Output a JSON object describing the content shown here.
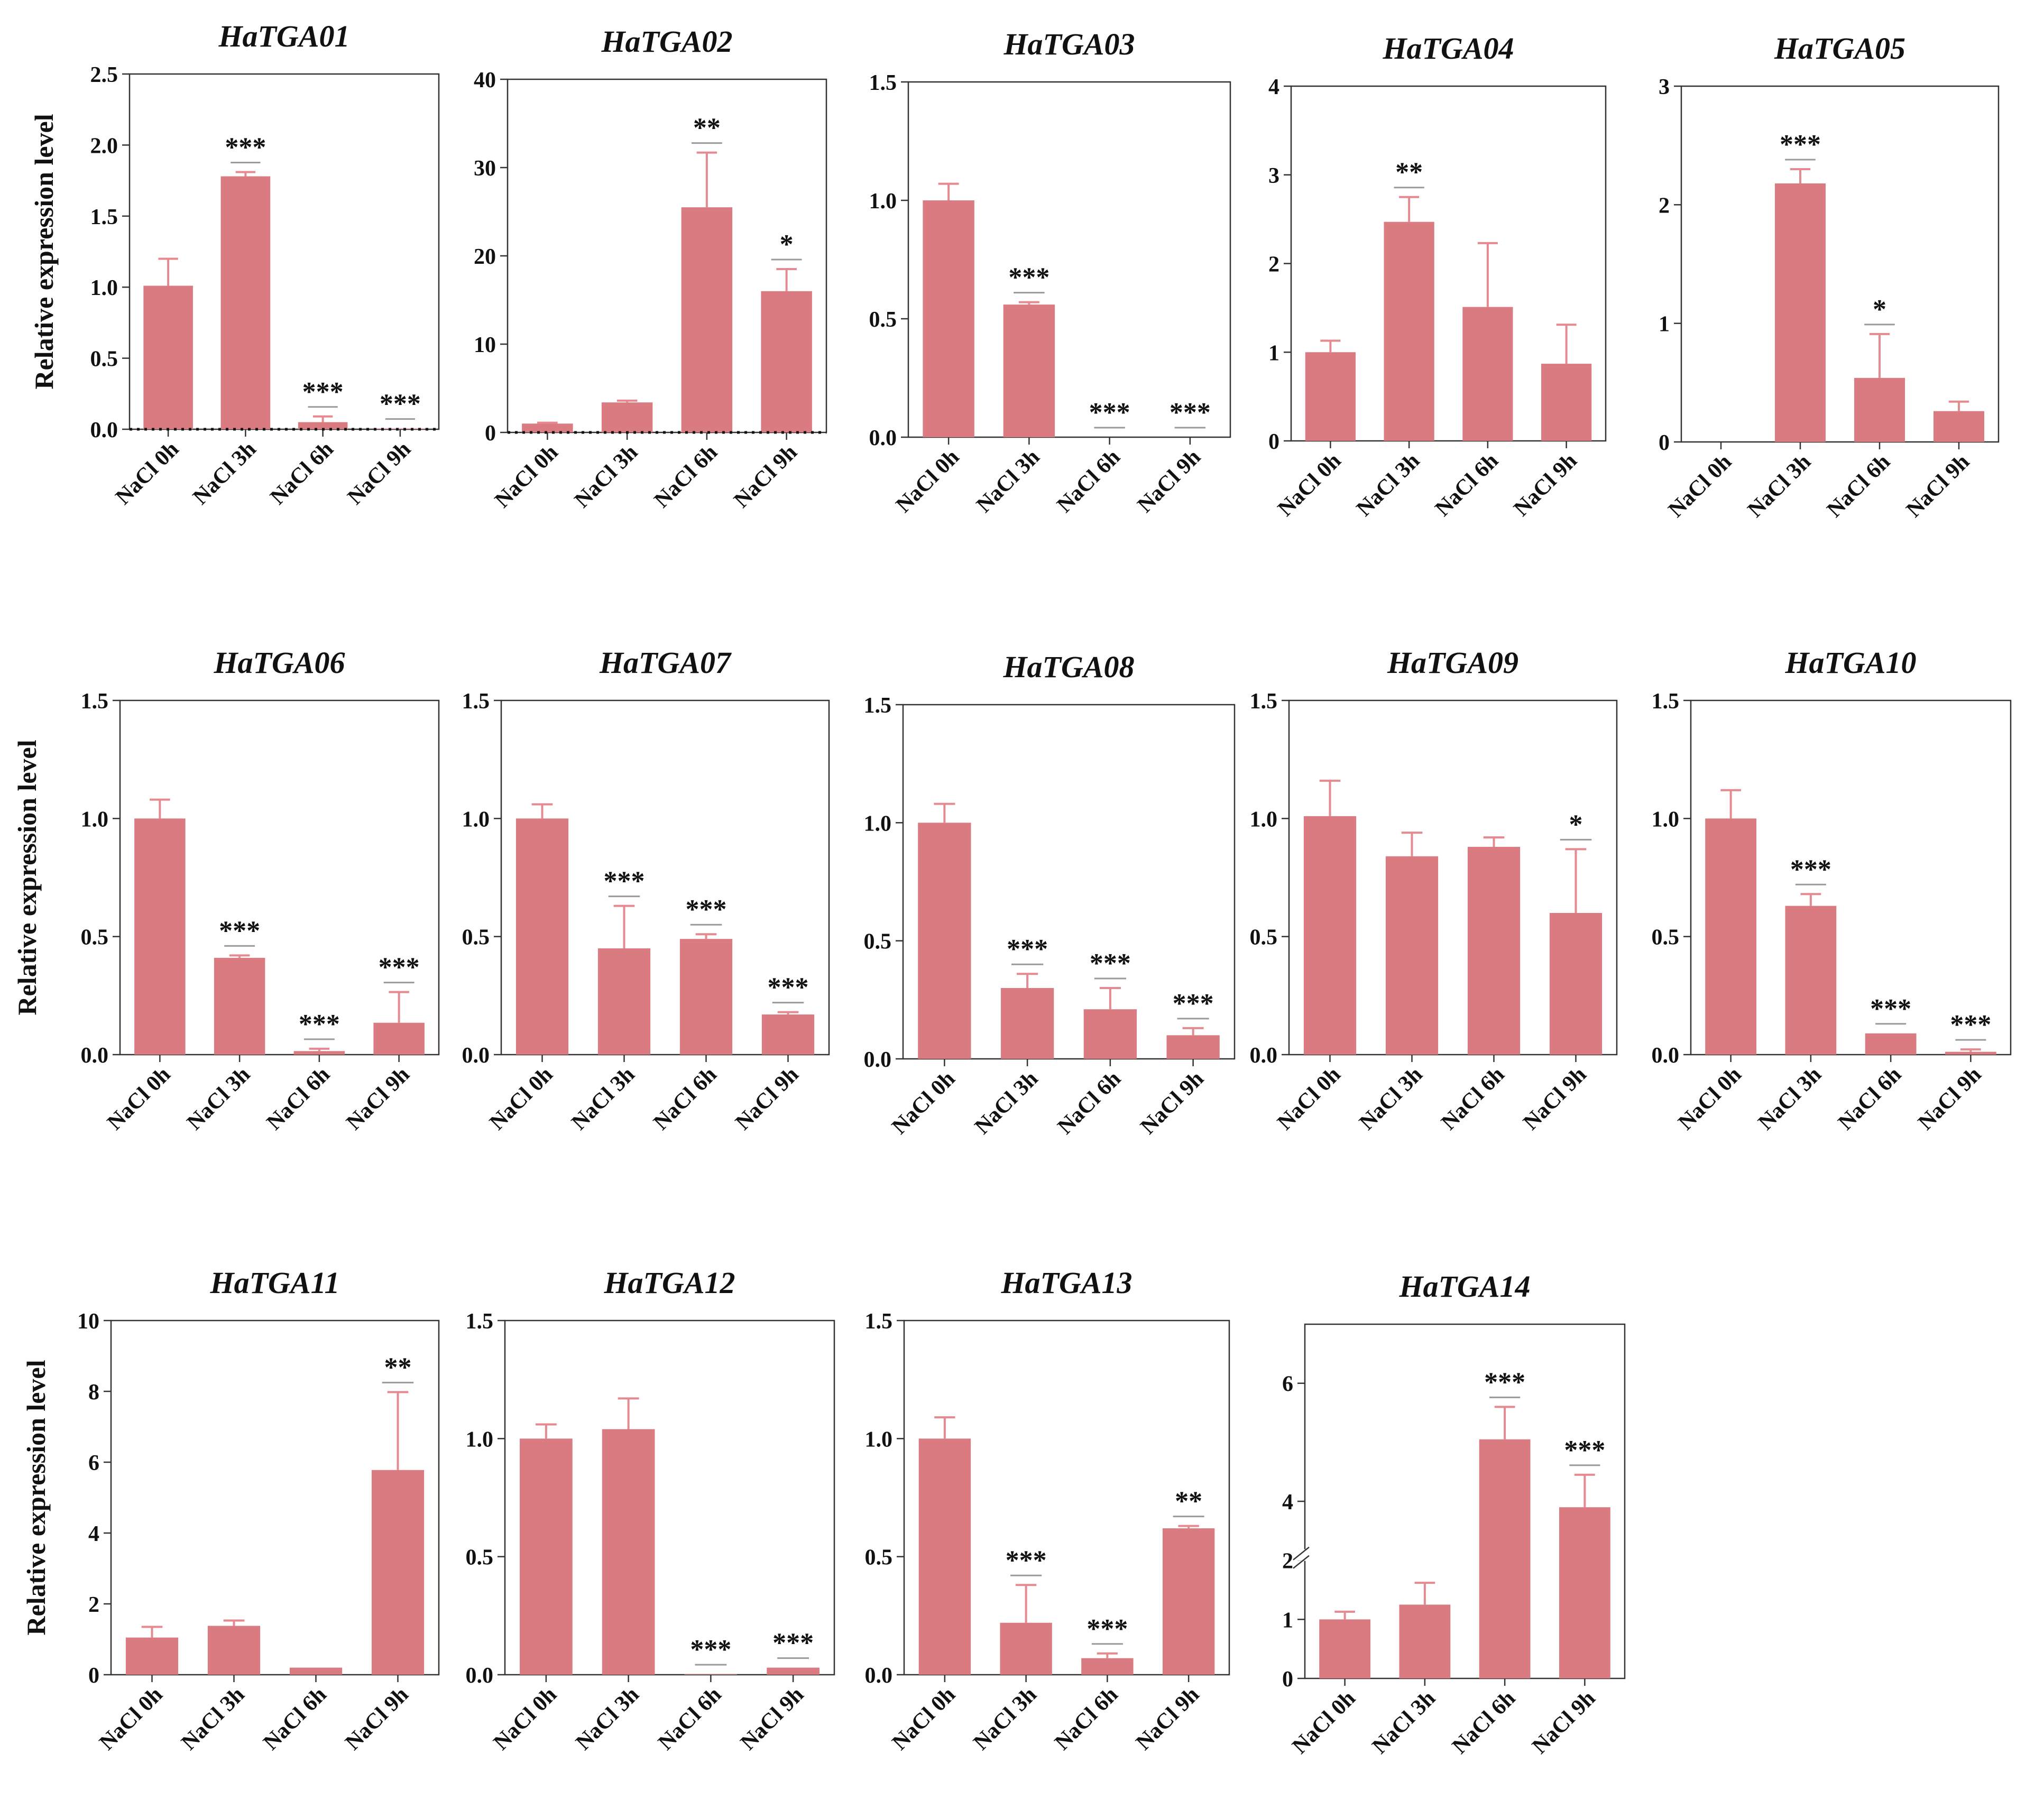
{
  "figure": {
    "ylabel": "Relative expression level",
    "categories": [
      "NaCl 0h",
      "NaCl 3h",
      "NaCl 6h",
      "NaCl 9h"
    ],
    "bar_color": "#d97b80",
    "error_color": "#e58a90",
    "sig_line_color": "#9a9a9a",
    "axis_color": "#333333"
  },
  "chart_data": [
    {
      "type": "bar",
      "title": "HaTGA01",
      "ylabel": "Relative expression level",
      "categories": [
        "NaCl 0h",
        "NaCl 3h",
        "NaCl 6h",
        "NaCl 9h"
      ],
      "ylim": [
        0,
        2.5
      ],
      "yticks": [
        "0.0",
        "0.5",
        "1.0",
        "1.5",
        "2.0",
        "2.5"
      ],
      "values": [
        1.01,
        1.78,
        0.05,
        0.005
      ],
      "errors": [
        0.19,
        0.03,
        0.04,
        0.0
      ],
      "sig": [
        "",
        "***",
        "***",
        "***"
      ],
      "zero_line": "dotted"
    },
    {
      "type": "bar",
      "title": "HaTGA02",
      "categories": [
        "NaCl 0h",
        "NaCl 3h",
        "NaCl 6h",
        "NaCl 9h"
      ],
      "ylim": [
        0,
        40
      ],
      "yticks": [
        "0",
        "10",
        "20",
        "30",
        "40"
      ],
      "values": [
        1.0,
        3.4,
        25.5,
        16.0
      ],
      "errors": [
        0.1,
        0.2,
        6.2,
        2.5
      ],
      "sig": [
        "",
        "",
        "**",
        "*"
      ],
      "zero_line": "dotted"
    },
    {
      "type": "bar",
      "title": "HaTGA03",
      "categories": [
        "NaCl 0h",
        "NaCl 3h",
        "NaCl 6h",
        "NaCl 9h"
      ],
      "ylim": [
        0,
        1.5
      ],
      "yticks": [
        "0.0",
        "0.5",
        "1.0",
        "1.5"
      ],
      "values": [
        1.0,
        0.56,
        0.0,
        0.0
      ],
      "errors": [
        0.07,
        0.01,
        0.0,
        0.0
      ],
      "sig": [
        "",
        "***",
        "***",
        "***"
      ]
    },
    {
      "type": "bar",
      "title": "HaTGA04",
      "categories": [
        "NaCl 0h",
        "NaCl 3h",
        "NaCl 6h",
        "NaCl 9h"
      ],
      "ylim": [
        0,
        4
      ],
      "yticks": [
        "0",
        "1",
        "2",
        "3",
        "4"
      ],
      "values": [
        1.0,
        2.47,
        1.51,
        0.87
      ],
      "errors": [
        0.13,
        0.28,
        0.72,
        0.44
      ],
      "sig": [
        "",
        "**",
        "",
        ""
      ]
    },
    {
      "type": "bar",
      "title": "HaTGA05",
      "categories": [
        "NaCl 0h",
        "NaCl 3h",
        "NaCl 6h",
        "NaCl 9h"
      ],
      "ylim": [
        0,
        3
      ],
      "yticks": [
        "0",
        "1",
        "2",
        "3"
      ],
      "values": [
        0.0,
        2.18,
        0.54,
        0.26
      ],
      "errors": [
        0.0,
        0.12,
        0.37,
        0.08
      ],
      "sig": [
        "",
        "***",
        "*",
        ""
      ]
    },
    {
      "type": "bar",
      "title": "HaTGA06",
      "ylabel": "Relative expression level",
      "categories": [
        "NaCl 0h",
        "NaCl 3h",
        "NaCl 6h",
        "NaCl 9h"
      ],
      "ylim": [
        0,
        1.5
      ],
      "yticks": [
        "0.0",
        "0.5",
        "1.0",
        "1.5"
      ],
      "values": [
        1.0,
        0.41,
        0.015,
        0.135
      ],
      "errors": [
        0.08,
        0.01,
        0.01,
        0.13
      ],
      "sig": [
        "",
        "***",
        "***",
        "***"
      ]
    },
    {
      "type": "bar",
      "title": "HaTGA07",
      "categories": [
        "NaCl 0h",
        "NaCl 3h",
        "NaCl 6h",
        "NaCl 9h"
      ],
      "ylim": [
        0,
        1.5
      ],
      "yticks": [
        "0.0",
        "0.5",
        "1.0",
        "1.5"
      ],
      "values": [
        1.0,
        0.45,
        0.49,
        0.17
      ],
      "errors": [
        0.06,
        0.18,
        0.02,
        0.01
      ],
      "sig": [
        "",
        "***",
        "***",
        "***"
      ]
    },
    {
      "type": "bar",
      "title": "HaTGA08",
      "categories": [
        "NaCl 0h",
        "NaCl 3h",
        "NaCl 6h",
        "NaCl 9h"
      ],
      "ylim": [
        0,
        1.5
      ],
      "yticks": [
        "0.0",
        "0.5",
        "1.0",
        "1.5"
      ],
      "values": [
        1.0,
        0.3,
        0.21,
        0.1
      ],
      "errors": [
        0.08,
        0.06,
        0.09,
        0.03
      ],
      "sig": [
        "",
        "***",
        "***",
        "***"
      ]
    },
    {
      "type": "bar",
      "title": "HaTGA09",
      "categories": [
        "NaCl 0h",
        "NaCl 3h",
        "NaCl 6h",
        "NaCl 9h"
      ],
      "ylim": [
        0,
        1.5
      ],
      "yticks": [
        "0.0",
        "0.5",
        "1.0",
        "1.5"
      ],
      "values": [
        1.01,
        0.84,
        0.88,
        0.6
      ],
      "errors": [
        0.15,
        0.1,
        0.04,
        0.27
      ],
      "sig": [
        "",
        "",
        "",
        "*"
      ]
    },
    {
      "type": "bar",
      "title": "HaTGA10",
      "categories": [
        "NaCl 0h",
        "NaCl 3h",
        "NaCl 6h",
        "NaCl 9h"
      ],
      "ylim": [
        0,
        1.5
      ],
      "yticks": [
        "0.0",
        "0.5",
        "1.0",
        "1.5"
      ],
      "values": [
        1.0,
        0.63,
        0.09,
        0.012
      ],
      "errors": [
        0.12,
        0.05,
        0.0,
        0.01
      ],
      "sig": [
        "",
        "***",
        "***",
        "***"
      ]
    },
    {
      "type": "bar",
      "title": "HaTGA11",
      "ylabel": "Relative expression level",
      "categories": [
        "NaCl 0h",
        "NaCl 3h",
        "NaCl 6h",
        "NaCl 9h"
      ],
      "ylim": [
        0,
        10
      ],
      "yticks": [
        "0",
        "2",
        "4",
        "6",
        "8",
        "10"
      ],
      "values": [
        1.05,
        1.38,
        0.2,
        5.78
      ],
      "errors": [
        0.3,
        0.15,
        0.0,
        2.2
      ],
      "sig": [
        "",
        "",
        "",
        "**"
      ]
    },
    {
      "type": "bar",
      "title": "HaTGA12",
      "categories": [
        "NaCl 0h",
        "NaCl 3h",
        "NaCl 6h",
        "NaCl 9h"
      ],
      "ylim": [
        0,
        1.5
      ],
      "yticks": [
        "0.0",
        "0.5",
        "1.0",
        "1.5"
      ],
      "values": [
        1.0,
        1.04,
        0.002,
        0.03
      ],
      "errors": [
        0.06,
        0.13,
        0.0,
        0.0
      ],
      "sig": [
        "",
        "",
        "***",
        "***"
      ]
    },
    {
      "type": "bar",
      "title": "HaTGA13",
      "categories": [
        "NaCl 0h",
        "NaCl 3h",
        "NaCl 6h",
        "NaCl 9h"
      ],
      "ylim": [
        0,
        1.5
      ],
      "yticks": [
        "0.0",
        "0.5",
        "1.0",
        "1.5"
      ],
      "values": [
        1.0,
        0.22,
        0.07,
        0.62
      ],
      "errors": [
        0.09,
        0.16,
        0.02,
        0.01
      ],
      "sig": [
        "",
        "***",
        "***",
        "**"
      ]
    },
    {
      "type": "bar",
      "title": "HaTGA14",
      "categories": [
        "NaCl 0h",
        "NaCl 3h",
        "NaCl 6h",
        "NaCl 9h"
      ],
      "ylim": [
        0,
        7
      ],
      "yticks": [
        "0",
        "1",
        "2",
        "4",
        "6"
      ],
      "axis_break": [
        2,
        3
      ],
      "values": [
        1.0,
        1.25,
        5.05,
        3.9
      ],
      "errors": [
        0.13,
        0.37,
        0.55,
        0.55
      ],
      "sig": [
        "",
        "",
        "***",
        "***"
      ]
    }
  ]
}
